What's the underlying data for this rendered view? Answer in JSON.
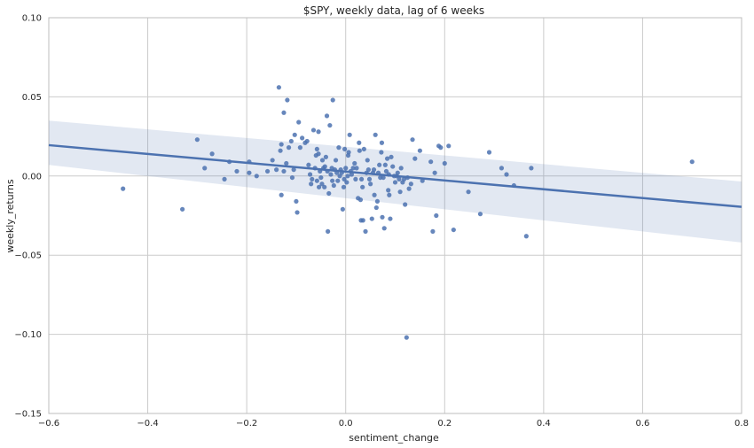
{
  "chart_data": {
    "type": "scatter",
    "title": "$SPY, weekly data, lag of 6 weeks",
    "xlabel": "sentiment_change",
    "ylabel": "weekly_returns",
    "xlim": [
      -0.6,
      0.8
    ],
    "ylim": [
      -0.15,
      0.1
    ],
    "x_ticks": [
      -0.6,
      -0.4,
      -0.2,
      0.0,
      0.2,
      0.4,
      0.6,
      0.8
    ],
    "y_ticks": [
      -0.15,
      -0.1,
      -0.05,
      0.0,
      0.05,
      0.1
    ],
    "x_tick_labels": [
      "−0.6",
      "−0.4",
      "−0.2",
      "0.0",
      "0.2",
      "0.4",
      "0.6",
      "0.8"
    ],
    "y_tick_labels": [
      "−0.15",
      "−0.10",
      "−0.05",
      "0.00",
      "0.05",
      "0.10"
    ],
    "grid": true,
    "points": [
      [
        -0.45,
        -0.008
      ],
      [
        -0.33,
        -0.021
      ],
      [
        -0.3,
        0.023
      ],
      [
        -0.285,
        0.005
      ],
      [
        -0.27,
        0.014
      ],
      [
        -0.245,
        -0.002
      ],
      [
        -0.235,
        0.009
      ],
      [
        -0.22,
        0.003
      ],
      [
        -0.195,
        0.009
      ],
      [
        -0.195,
        0.002
      ],
      [
        -0.18,
        0.0
      ],
      [
        -0.158,
        0.003
      ],
      [
        -0.148,
        0.01
      ],
      [
        -0.14,
        0.004
      ],
      [
        -0.135,
        0.056
      ],
      [
        -0.132,
        0.016
      ],
      [
        -0.13,
        -0.012
      ],
      [
        -0.13,
        0.02
      ],
      [
        -0.125,
        0.04
      ],
      [
        -0.125,
        0.003
      ],
      [
        -0.12,
        0.008
      ],
      [
        -0.118,
        0.048
      ],
      [
        -0.115,
        0.018
      ],
      [
        -0.11,
        0.022
      ],
      [
        -0.108,
        -0.001
      ],
      [
        -0.105,
        0.004
      ],
      [
        -0.103,
        0.026
      ],
      [
        -0.1,
        -0.016
      ],
      [
        -0.098,
        -0.023
      ],
      [
        -0.095,
        0.034
      ],
      [
        -0.092,
        0.018
      ],
      [
        -0.088,
        0.024
      ],
      [
        -0.082,
        0.021
      ],
      [
        -0.078,
        0.022
      ],
      [
        -0.075,
        0.007
      ],
      [
        -0.072,
        0.001
      ],
      [
        -0.07,
        -0.005
      ],
      [
        -0.068,
        -0.002
      ],
      [
        -0.065,
        0.029
      ],
      [
        -0.062,
        0.005
      ],
      [
        -0.06,
        0.013
      ],
      [
        -0.058,
        -0.003
      ],
      [
        -0.058,
        0.017
      ],
      [
        -0.055,
        0.014
      ],
      [
        -0.055,
        0.028
      ],
      [
        -0.054,
        -0.007
      ],
      [
        -0.052,
        0.003
      ],
      [
        -0.05,
        -0.001
      ],
      [
        -0.048,
        -0.005
      ],
      [
        -0.047,
        0.01
      ],
      [
        -0.045,
        0.005
      ],
      [
        -0.043,
        -0.007
      ],
      [
        -0.042,
        0.006
      ],
      [
        -0.04,
        0.012
      ],
      [
        -0.038,
        0.038
      ],
      [
        -0.037,
        0.003
      ],
      [
        -0.036,
        -0.035
      ],
      [
        -0.034,
        -0.011
      ],
      [
        -0.032,
        0.032
      ],
      [
        -0.03,
        0.001
      ],
      [
        -0.028,
        0.005
      ],
      [
        -0.027,
        -0.003
      ],
      [
        -0.026,
        0.048
      ],
      [
        -0.024,
        -0.006
      ],
      [
        -0.022,
        0.004
      ],
      [
        -0.02,
        0.01
      ],
      [
        -0.018,
        0.002
      ],
      [
        -0.016,
        -0.003
      ],
      [
        -0.014,
        0.018
      ],
      [
        -0.012,
        0.0
      ],
      [
        -0.01,
        0.004
      ],
      [
        -0.008,
        0.002
      ],
      [
        -0.006,
        -0.021
      ],
      [
        -0.004,
        -0.007
      ],
      [
        -0.003,
        -0.002
      ],
      [
        -0.002,
        0.017
      ],
      [
        0.0,
        0.005
      ],
      [
        0.002,
        -0.004
      ],
      [
        0.004,
        0.0
      ],
      [
        0.005,
        0.013
      ],
      [
        0.006,
        0.015
      ],
      [
        0.008,
        0.026
      ],
      [
        0.01,
        0.003
      ],
      [
        0.012,
        0.001
      ],
      [
        0.015,
        0.005
      ],
      [
        0.018,
        0.008
      ],
      [
        0.02,
        -0.002
      ],
      [
        0.022,
        0.005
      ],
      [
        0.025,
        -0.014
      ],
      [
        0.027,
        0.021
      ],
      [
        0.028,
        0.016
      ],
      [
        0.03,
        -0.015
      ],
      [
        0.031,
        -0.028
      ],
      [
        0.032,
        -0.002
      ],
      [
        0.034,
        -0.007
      ],
      [
        0.035,
        -0.028
      ],
      [
        0.037,
        0.017
      ],
      [
        0.04,
        -0.035
      ],
      [
        0.042,
        0.002
      ],
      [
        0.044,
        0.01
      ],
      [
        0.046,
        0.004
      ],
      [
        0.048,
        -0.002
      ],
      [
        0.05,
        -0.005
      ],
      [
        0.053,
        -0.027
      ],
      [
        0.055,
        0.002
      ],
      [
        0.057,
        0.004
      ],
      [
        0.058,
        -0.012
      ],
      [
        0.06,
        0.026
      ],
      [
        0.062,
        -0.02
      ],
      [
        0.064,
        -0.016
      ],
      [
        0.066,
        0.002
      ],
      [
        0.068,
        0.007
      ],
      [
        0.07,
        -0.001
      ],
      [
        0.072,
        0.015
      ],
      [
        0.073,
        0.021
      ],
      [
        0.074,
        -0.026
      ],
      [
        0.076,
        -0.001
      ],
      [
        0.078,
        -0.033
      ],
      [
        0.08,
        0.007
      ],
      [
        0.082,
        0.003
      ],
      [
        0.084,
        0.011
      ],
      [
        0.086,
        -0.009
      ],
      [
        0.087,
        0.001
      ],
      [
        0.088,
        -0.012
      ],
      [
        0.09,
        -0.027
      ],
      [
        0.092,
        0.012
      ],
      [
        0.095,
        0.006
      ],
      [
        0.098,
        0.0
      ],
      [
        0.1,
        -0.004
      ],
      [
        0.103,
        0.0
      ],
      [
        0.105,
        0.002
      ],
      [
        0.108,
        -0.002
      ],
      [
        0.11,
        -0.01
      ],
      [
        0.112,
        0.005
      ],
      [
        0.115,
        -0.004
      ],
      [
        0.118,
        -0.002
      ],
      [
        0.12,
        -0.018
      ],
      [
        0.123,
        -0.102
      ],
      [
        0.125,
        -0.001
      ],
      [
        0.128,
        -0.008
      ],
      [
        0.132,
        -0.005
      ],
      [
        0.135,
        0.023
      ],
      [
        0.14,
        0.011
      ],
      [
        0.15,
        0.016
      ],
      [
        0.155,
        -0.003
      ],
      [
        0.172,
        0.009
      ],
      [
        0.176,
        -0.035
      ],
      [
        0.18,
        0.002
      ],
      [
        0.183,
        -0.025
      ],
      [
        0.188,
        0.019
      ],
      [
        0.192,
        0.018
      ],
      [
        0.2,
        0.008
      ],
      [
        0.208,
        0.019
      ],
      [
        0.218,
        -0.034
      ],
      [
        0.248,
        -0.01
      ],
      [
        0.272,
        -0.024
      ],
      [
        0.29,
        0.015
      ],
      [
        0.315,
        0.005
      ],
      [
        0.325,
        0.001
      ],
      [
        0.34,
        -0.006
      ],
      [
        0.365,
        -0.038
      ],
      [
        0.375,
        0.005
      ],
      [
        0.7,
        0.009
      ]
    ],
    "regression": {
      "x": [
        -0.6,
        0.8
      ],
      "y": [
        0.0195,
        -0.0195
      ],
      "ci_upper": [
        0.035,
        -0.0035
      ],
      "ci_lower": [
        0.007,
        -0.042
      ]
    },
    "colors": {
      "points": "#4c72b0",
      "line": "#4c72b0",
      "band": "#4c72b0",
      "grid": "#cbcbcb",
      "frame": "#bcbcbc"
    }
  }
}
